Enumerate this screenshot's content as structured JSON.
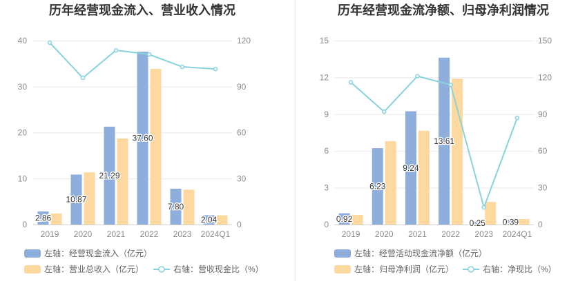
{
  "chart_data": [
    {
      "type": "bar",
      "title": "历年经营现金流入、营业收入情况",
      "categories": [
        "2019",
        "2020",
        "2021",
        "2022",
        "2023",
        "2024Q1"
      ],
      "y_left": {
        "min": 0,
        "max": 40,
        "ticks": [
          0,
          10,
          20,
          30,
          40
        ]
      },
      "y_right": {
        "min": 0,
        "max": 120,
        "ticks": [
          0,
          30,
          60,
          90,
          120
        ]
      },
      "grid": true,
      "legend": "bottom",
      "series": [
        {
          "name": "左轴：经营现金流入（亿元）",
          "type": "bar",
          "axis": "left",
          "color": "#8eaedc",
          "values": [
            2.86,
            10.87,
            21.29,
            37.6,
            7.8,
            2.04
          ],
          "data_labels": [
            "2.86",
            "10.87",
            "21.29",
            "37.60",
            "7.80",
            "2.04"
          ]
        },
        {
          "name": "左轴：营业总收入（亿元）",
          "type": "bar",
          "axis": "left",
          "color": "#fed99f",
          "values": [
            2.41,
            11.36,
            18.73,
            33.87,
            7.58,
            2.01
          ]
        },
        {
          "name": "右轴：营收现金比（%）",
          "type": "line",
          "axis": "right",
          "color": "#88d3dd",
          "values": [
            118.7,
            95.7,
            113.7,
            111.0,
            102.9,
            101.5
          ]
        }
      ]
    },
    {
      "type": "bar",
      "title": "历年经营现金流净额、归母净利润情况",
      "categories": [
        "2019",
        "2020",
        "2021",
        "2022",
        "2023",
        "2024Q1"
      ],
      "y_left": {
        "min": 0,
        "max": 15,
        "ticks": [
          0,
          3,
          6,
          9,
          12,
          15
        ]
      },
      "y_right": {
        "min": 0,
        "max": 150,
        "ticks": [
          0,
          30,
          60,
          90,
          120,
          150
        ]
      },
      "grid": true,
      "legend": "bottom",
      "series": [
        {
          "name": "左轴：经营活动现金流净额（亿元）",
          "type": "bar",
          "axis": "left",
          "color": "#8eaedc",
          "values": [
            0.92,
            6.23,
            9.24,
            13.61,
            0.25,
            0.39
          ],
          "data_labels": [
            "0.92",
            "6.23",
            "9.24",
            "13.61",
            "0.25",
            "0.39"
          ]
        },
        {
          "name": "左轴：归母净利润（亿元）",
          "type": "bar",
          "axis": "left",
          "color": "#fed99f",
          "values": [
            0.79,
            6.8,
            7.65,
            11.9,
            1.85,
            0.45
          ]
        },
        {
          "name": "右轴：净现比（%）",
          "type": "line",
          "axis": "right",
          "color": "#88d3dd",
          "values": [
            116,
            92,
            121,
            114,
            14,
            87
          ]
        }
      ]
    }
  ]
}
